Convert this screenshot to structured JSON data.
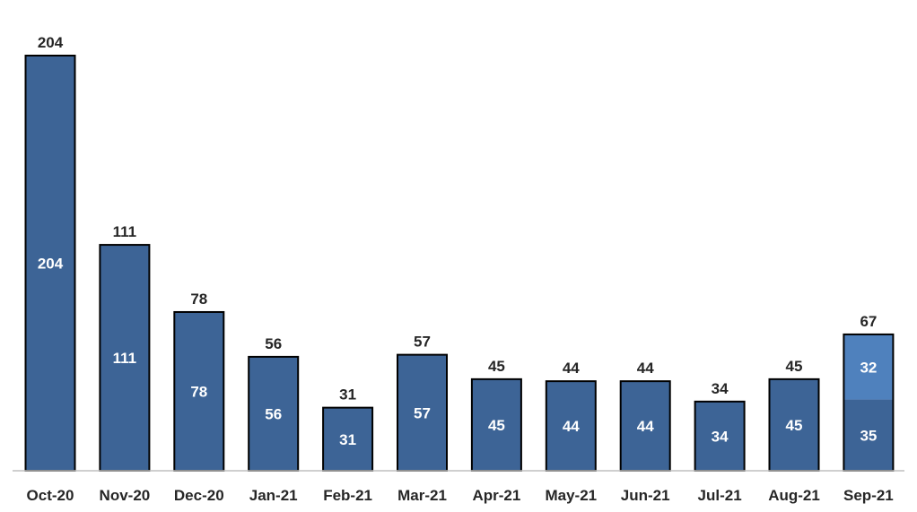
{
  "chart_data": {
    "type": "bar",
    "stacked": true,
    "title": "",
    "xlabel": "",
    "ylabel": "",
    "categories": [
      "Oct-20",
      "Nov-20",
      "Dec-20",
      "Jan-21",
      "Feb-21",
      "Mar-21",
      "Apr-21",
      "May-21",
      "Jun-21",
      "Jul-21",
      "Aug-21",
      "Sep-21"
    ],
    "series": [
      {
        "values": [
          204,
          111,
          78,
          56,
          31,
          57,
          45,
          44,
          44,
          34,
          45,
          35
        ],
        "color": "#3d6496"
      },
      {
        "values": [
          0,
          0,
          0,
          0,
          0,
          0,
          0,
          0,
          0,
          0,
          0,
          32
        ],
        "color": "#4f81bd"
      }
    ],
    "totals": [
      204,
      111,
      78,
      56,
      31,
      57,
      45,
      44,
      44,
      34,
      45,
      67
    ],
    "ylim": [
      0,
      204
    ],
    "grid": false,
    "legend": "none",
    "outline_color": "#000000",
    "axis_color": "#bfbfbf"
  }
}
